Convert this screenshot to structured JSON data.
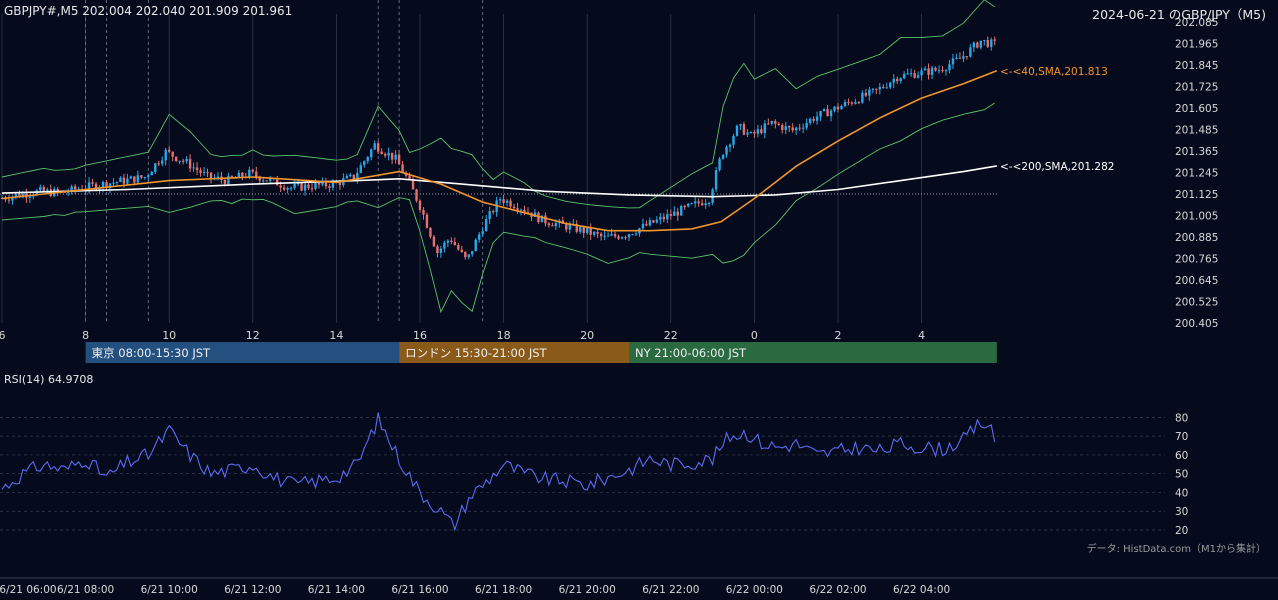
{
  "colors": {
    "background": "#060a1d",
    "grid": "#2a2f45",
    "axis_text": "#d8d8d8",
    "candle_up": "#29a8e8",
    "candle_down": "#e8706a",
    "sma40": "#f0962a",
    "sma200": "#ffffff",
    "bollinger": "#58c46a",
    "rsi_line": "#5a6cf0",
    "tokyo": "#245080",
    "london": "#8a5a18",
    "ny": "#2a6a40"
  },
  "chart_data": [
    {
      "type": "candlestick",
      "title": "GBPJPY#,M5 202.004 202.040 201.909 201.961",
      "date_title": "2024-06-21 のGBP/JPY（M5)",
      "ylim": [
        200.405,
        202.085
      ],
      "y_ticks": [
        "202.085",
        "201.965",
        "201.845",
        "201.725",
        "201.605",
        "201.485",
        "201.365",
        "201.245",
        "201.125",
        "201.005",
        "200.885",
        "200.765",
        "200.645",
        "200.525",
        "200.405"
      ],
      "x_ticks": [
        "6",
        "8",
        "10",
        "12",
        "14",
        "16",
        "18",
        "20",
        "22",
        "0",
        "2",
        "4"
      ],
      "x_hours": [
        6,
        8,
        10,
        12,
        14,
        16,
        18,
        20,
        22,
        24,
        26,
        28
      ],
      "x_range_hours": [
        6,
        29.8
      ],
      "session_separators_hours": [
        8,
        8.5,
        9.5,
        15,
        15.5,
        17.5
      ],
      "sma40_label": "<-<40,SMA,201.813",
      "sma200_label": "<-<200,SMA,201.282",
      "sma40_last": 201.813,
      "sma200_last": 201.282,
      "last_close": 201.961,
      "path_points": [
        [
          6.0,
          201.1
        ],
        [
          6.5,
          201.12
        ],
        [
          7.0,
          201.14
        ],
        [
          7.5,
          201.13
        ],
        [
          8.0,
          201.16
        ],
        [
          8.5,
          201.18
        ],
        [
          9.0,
          201.2
        ],
        [
          9.5,
          201.22
        ],
        [
          10.0,
          201.36
        ],
        [
          10.5,
          201.3
        ],
        [
          11.0,
          201.22
        ],
        [
          11.5,
          201.2
        ],
        [
          12.0,
          201.24
        ],
        [
          12.5,
          201.2
        ],
        [
          13.0,
          201.16
        ],
        [
          13.5,
          201.17
        ],
        [
          14.0,
          201.18
        ],
        [
          14.5,
          201.22
        ],
        [
          15.0,
          201.4
        ],
        [
          15.5,
          201.32
        ],
        [
          15.8,
          201.2
        ],
        [
          16.1,
          201.05
        ],
        [
          16.5,
          200.8
        ],
        [
          16.8,
          200.88
        ],
        [
          17.2,
          200.75
        ],
        [
          17.6,
          200.95
        ],
        [
          18.0,
          201.1
        ],
        [
          18.5,
          201.05
        ],
        [
          19.0,
          200.98
        ],
        [
          19.5,
          200.95
        ],
        [
          20.0,
          200.92
        ],
        [
          20.5,
          200.88
        ],
        [
          21.0,
          200.9
        ],
        [
          21.5,
          200.95
        ],
        [
          22.0,
          201.0
        ],
        [
          22.5,
          201.05
        ],
        [
          23.0,
          201.1
        ],
        [
          23.3,
          201.35
        ],
        [
          23.7,
          201.5
        ],
        [
          24.0,
          201.45
        ],
        [
          24.5,
          201.52
        ],
        [
          25.0,
          201.48
        ],
        [
          25.5,
          201.55
        ],
        [
          26.0,
          201.6
        ],
        [
          26.5,
          201.65
        ],
        [
          27.0,
          201.7
        ],
        [
          27.5,
          201.78
        ],
        [
          28.0,
          201.8
        ],
        [
          28.5,
          201.82
        ],
        [
          29.0,
          201.88
        ],
        [
          29.5,
          201.98
        ],
        [
          29.8,
          201.96
        ]
      ],
      "sma40_points": [
        [
          6.0,
          201.1
        ],
        [
          8.0,
          201.15
        ],
        [
          10.0,
          201.2
        ],
        [
          12.0,
          201.22
        ],
        [
          14.0,
          201.19
        ],
        [
          15.5,
          201.25
        ],
        [
          16.5,
          201.18
        ],
        [
          17.5,
          201.08
        ],
        [
          18.5,
          201.02
        ],
        [
          19.5,
          200.96
        ],
        [
          20.5,
          200.92
        ],
        [
          21.5,
          200.92
        ],
        [
          22.5,
          200.93
        ],
        [
          23.2,
          200.97
        ],
        [
          24.0,
          201.1
        ],
        [
          25.0,
          201.28
        ],
        [
          26.0,
          201.42
        ],
        [
          27.0,
          201.55
        ],
        [
          28.0,
          201.66
        ],
        [
          29.0,
          201.74
        ],
        [
          29.8,
          201.813
        ]
      ],
      "sma200_points": [
        [
          6.0,
          201.13
        ],
        [
          9.0,
          201.15
        ],
        [
          12.0,
          201.18
        ],
        [
          14.5,
          201.2
        ],
        [
          15.5,
          201.21
        ],
        [
          17.0,
          201.18
        ],
        [
          19.0,
          201.14
        ],
        [
          21.0,
          201.12
        ],
        [
          23.0,
          201.11
        ],
        [
          24.5,
          201.12
        ],
        [
          26.0,
          201.15
        ],
        [
          27.5,
          201.2
        ],
        [
          29.0,
          201.25
        ],
        [
          29.8,
          201.282
        ]
      ],
      "reference_level": 201.125,
      "band_width": 0.12
    },
    {
      "type": "line",
      "title": "RSI(14) 64.9708",
      "ylim": [
        20,
        85
      ],
      "y_ticks": [
        80,
        70,
        60,
        50,
        40,
        30,
        20
      ],
      "x_ticks": [
        "6/21 06:00",
        "6/21 08:00",
        "6/21 10:00",
        "6/21 12:00",
        "6/21 14:00",
        "6/21 16:00",
        "6/21 18:00",
        "6/21 20:00",
        "6/21 22:00",
        "6/22 00:00",
        "6/22 02:00",
        "6/22 04:00"
      ],
      "points": [
        [
          6.0,
          42
        ],
        [
          6.5,
          50
        ],
        [
          7.0,
          55
        ],
        [
          7.5,
          52
        ],
        [
          8.0,
          58
        ],
        [
          8.5,
          48
        ],
        [
          9.0,
          56
        ],
        [
          9.5,
          60
        ],
        [
          10.0,
          73
        ],
        [
          10.5,
          60
        ],
        [
          11.0,
          50
        ],
        [
          11.5,
          52
        ],
        [
          12.0,
          55
        ],
        [
          12.5,
          48
        ],
        [
          13.0,
          44
        ],
        [
          13.5,
          46
        ],
        [
          14.0,
          48
        ],
        [
          14.5,
          55
        ],
        [
          15.0,
          79
        ],
        [
          15.5,
          58
        ],
        [
          16.0,
          40
        ],
        [
          16.5,
          30
        ],
        [
          16.8,
          22
        ],
        [
          17.2,
          38
        ],
        [
          17.6,
          46
        ],
        [
          18.0,
          55
        ],
        [
          18.5,
          50
        ],
        [
          19.0,
          47
        ],
        [
          19.5,
          46
        ],
        [
          20.0,
          44
        ],
        [
          20.5,
          48
        ],
        [
          21.0,
          52
        ],
        [
          21.5,
          58
        ],
        [
          22.0,
          55
        ],
        [
          22.5,
          56
        ],
        [
          23.0,
          58
        ],
        [
          23.4,
          70
        ],
        [
          23.8,
          72
        ],
        [
          24.2,
          66
        ],
        [
          24.6,
          64
        ],
        [
          25.0,
          66
        ],
        [
          25.5,
          60
        ],
        [
          26.0,
          62
        ],
        [
          26.5,
          64
        ],
        [
          27.0,
          62
        ],
        [
          27.5,
          66
        ],
        [
          28.0,
          64
        ],
        [
          28.5,
          63
        ],
        [
          29.0,
          68
        ],
        [
          29.4,
          77
        ],
        [
          29.6,
          76
        ],
        [
          29.8,
          65
        ]
      ]
    }
  ],
  "sessions": [
    {
      "label": "東京 08:00-15:30 JST",
      "start": 8,
      "end": 15.5,
      "color_key": "tokyo"
    },
    {
      "label": "ロンドン 15:30-21:00 JST",
      "start": 15.5,
      "end": 21,
      "color_key": "london"
    },
    {
      "label": "NY 21:00-06:00 JST",
      "start": 21,
      "end": 29.8,
      "color_key": "ny"
    }
  ],
  "source_note": "データ: HistData.com（M1から集計）"
}
